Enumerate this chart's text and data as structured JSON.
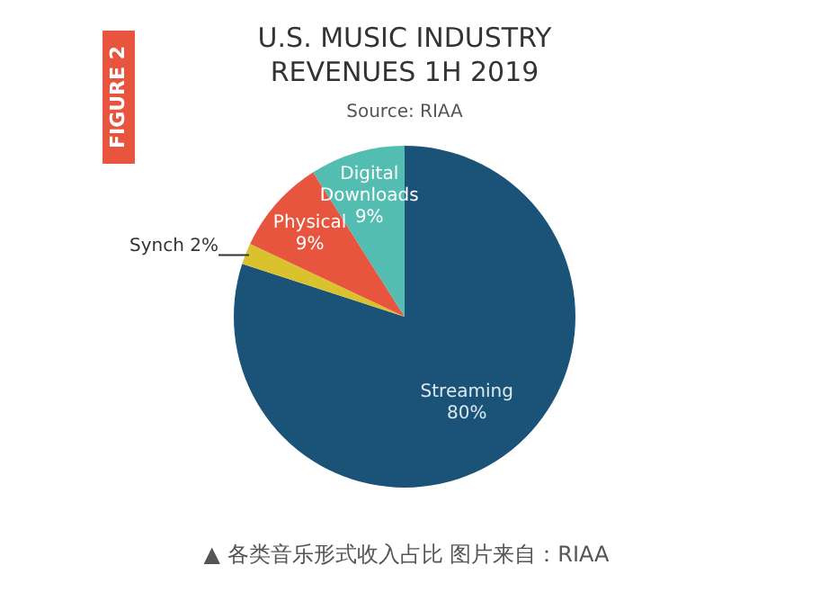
{
  "chart_data": {
    "type": "pie",
    "title": "U.S. MUSIC INDUSTRY\nREVENUES 1H 2019",
    "subtitle": "Source: RIAA",
    "categories": [
      "Streaming",
      "Synch",
      "Physical",
      "Digital\nDownloads"
    ],
    "values": [
      80,
      2,
      9,
      9
    ],
    "colors": [
      "#1b5378",
      "#d9c22e",
      "#e8553e",
      "#52bdb0"
    ],
    "value_labels": [
      "80%",
      "2%",
      "9%",
      "9%"
    ],
    "annotations": [
      "FIGURE 2",
      "▲ 各类音乐形式收入占比 图片来自：RIAA"
    ]
  }
}
